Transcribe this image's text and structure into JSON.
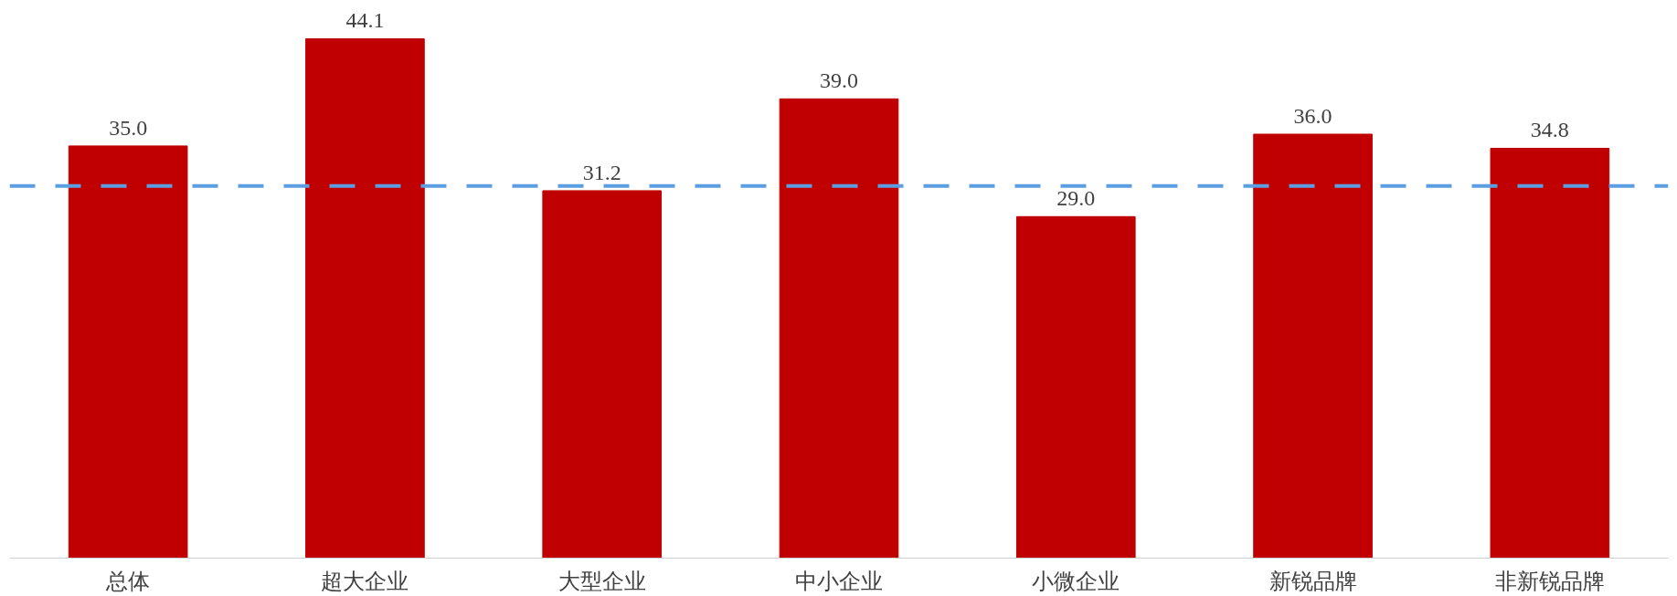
{
  "chart_data": {
    "type": "bar",
    "categories": [
      "总体",
      "超大企业",
      "大型企业",
      "中小企业",
      "小微企业",
      "新锐品牌",
      "非新锐品牌"
    ],
    "values": [
      35.0,
      44.1,
      31.2,
      39.0,
      29.0,
      36.0,
      34.8
    ],
    "value_labels": [
      "35.0",
      "44.1",
      "31.2",
      "39.0",
      "29.0",
      "36.0",
      "34.8"
    ],
    "color": "#c00000",
    "tick_labels": "x",
    "ref_lines": [
      {
        "axis": "y",
        "value": 31.6,
        "color": "#5b9ee2",
        "line_style": "dashed"
      }
    ]
  }
}
